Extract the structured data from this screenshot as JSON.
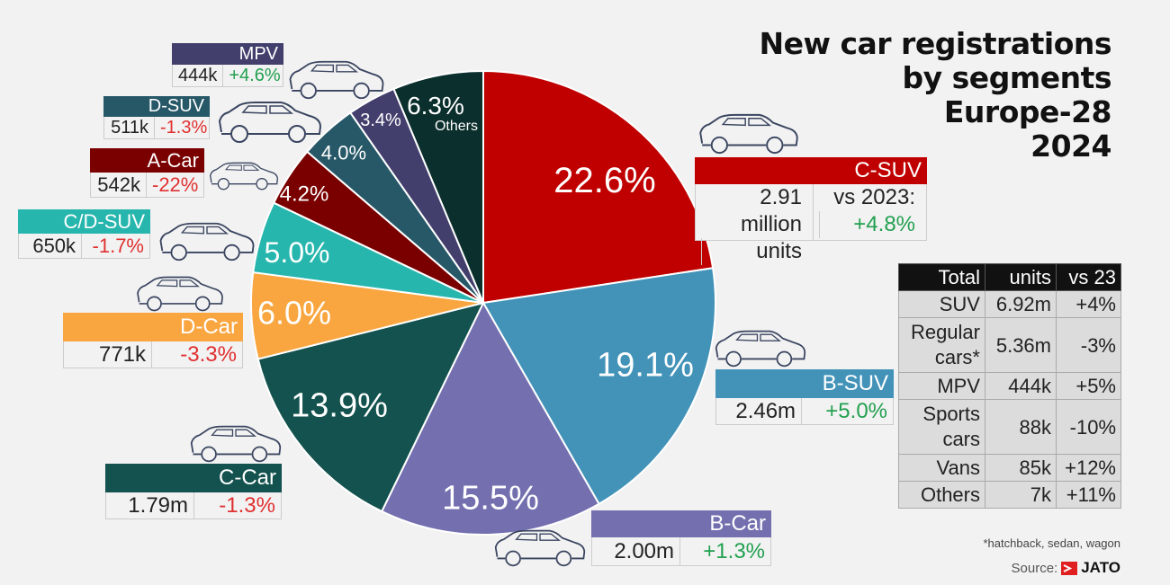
{
  "title": [
    "New car registrations",
    "by segments",
    "Europe-28",
    "2024"
  ],
  "chart_data": {
    "type": "pie",
    "start": "12 o'clock",
    "direction": "clockwise",
    "slices": [
      {
        "label": "C-SUV",
        "value": 22.6,
        "text": "22.6%",
        "color": "#c00000"
      },
      {
        "label": "B-SUV",
        "value": 19.1,
        "text": "19.1%",
        "color": "#4393b9"
      },
      {
        "label": "B-Car",
        "value": 15.5,
        "text": "15.5%",
        "color": "#7470b0"
      },
      {
        "label": "C-Car",
        "value": 13.9,
        "text": "13.9%",
        "color": "#13524e"
      },
      {
        "label": "D-Car",
        "value": 6.0,
        "text": "6.0%",
        "color": "#f9a640"
      },
      {
        "label": "C/D-SUV",
        "value": 5.0,
        "text": "5.0%",
        "color": "#27b6ad"
      },
      {
        "label": "A-Car",
        "value": 4.2,
        "text": "4.2%",
        "color": "#7a0000"
      },
      {
        "label": "D-SUV",
        "value": 4.0,
        "text": "4.0%",
        "color": "#275868"
      },
      {
        "label": "MPV",
        "value": 3.4,
        "text": "3.4%",
        "color": "#433f6d"
      },
      {
        "label": "Others",
        "value": 6.3,
        "text": "6.3%",
        "color": "#0b2f2d"
      }
    ]
  },
  "segments": {
    "mpv": {
      "name": "MPV",
      "units": "444k",
      "change": "+4.6%"
    },
    "dsuv": {
      "name": "D-SUV",
      "units": "511k",
      "change": "-1.3%"
    },
    "acar": {
      "name": "A-Car",
      "units": "542k",
      "change": "-22%"
    },
    "cdsuv": {
      "name": "C/D-SUV",
      "units": "650k",
      "change": "-1.7%"
    },
    "dcar": {
      "name": "D-Car",
      "units": "771k",
      "change": "-3.3%"
    },
    "ccar": {
      "name": "C-Car",
      "units": "1.79m",
      "change": "-1.3%"
    },
    "bcar": {
      "name": "B-Car",
      "units": "2.00m",
      "change": "+1.3%"
    },
    "bsuv": {
      "name": "B-SUV",
      "units": "2.46m",
      "change": "+5.0%"
    },
    "csuv": {
      "name": "C-SUV",
      "units1": "2.91 million",
      "units2": "units",
      "vs1": "vs 2023:",
      "change": "+4.8%"
    }
  },
  "others_label": "Others",
  "totals": {
    "header": [
      "Total",
      "units",
      "vs 23"
    ],
    "rows": [
      [
        "SUV",
        "6.92m",
        "+4%"
      ],
      [
        "Regular cars*",
        "5.36m",
        "-3%"
      ],
      [
        "MPV",
        "444k",
        "+5%"
      ],
      [
        "Sports cars",
        "88k",
        "-10%"
      ],
      [
        "Vans",
        "85k",
        "+12%"
      ],
      [
        "Others",
        "7k",
        "+11%"
      ]
    ]
  },
  "footnote": "*hatchback, sedan, wagon",
  "source_label": "Source:",
  "source_logo": "JATO",
  "colors": {
    "positive": "#22a050",
    "negative": "#e03030",
    "car_outline": "#3a4560"
  }
}
